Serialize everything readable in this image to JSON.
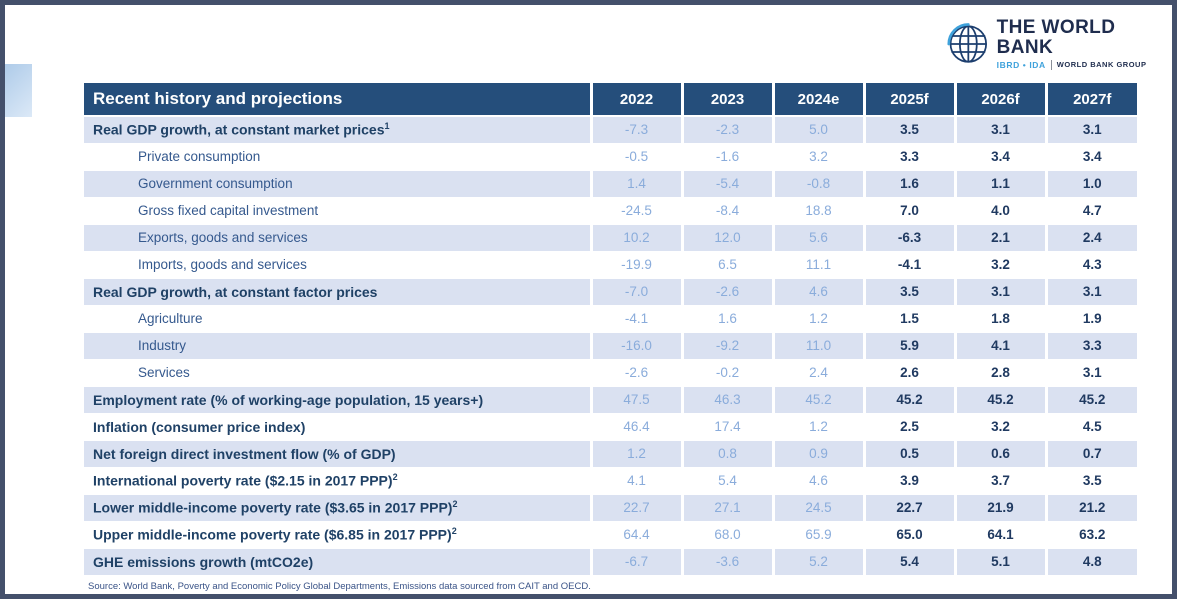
{
  "logo": {
    "title": "THE WORLD BANK",
    "org_left": "IBRD • IDA",
    "org_right": "WORLD BANK GROUP"
  },
  "table": {
    "title": "Recent history and projections",
    "years": [
      "2022",
      "2023",
      "2024e",
      "2025f",
      "2026f",
      "2027f"
    ],
    "rows": [
      {
        "label": "Real GDP growth, at constant market prices",
        "sup": "1",
        "indent": false,
        "shade": "blue",
        "values": [
          "-7.3",
          "-2.3",
          "5.0",
          "3.5",
          "3.1",
          "3.1"
        ]
      },
      {
        "label": "Private consumption",
        "sup": "",
        "indent": true,
        "shade": "white",
        "values": [
          "-0.5",
          "-1.6",
          "3.2",
          "3.3",
          "3.4",
          "3.4"
        ]
      },
      {
        "label": "Government consumption",
        "sup": "",
        "indent": true,
        "shade": "blue",
        "values": [
          "1.4",
          "-5.4",
          "-0.8",
          "1.6",
          "1.1",
          "1.0"
        ]
      },
      {
        "label": "Gross fixed capital investment",
        "sup": "",
        "indent": true,
        "shade": "white",
        "values": [
          "-24.5",
          "-8.4",
          "18.8",
          "7.0",
          "4.0",
          "4.7"
        ]
      },
      {
        "label": "Exports, goods and services",
        "sup": "",
        "indent": true,
        "shade": "blue",
        "values": [
          "10.2",
          "12.0",
          "5.6",
          "-6.3",
          "2.1",
          "2.4"
        ]
      },
      {
        "label": "Imports, goods and services",
        "sup": "",
        "indent": true,
        "shade": "white",
        "values": [
          "-19.9",
          "6.5",
          "11.1",
          "-4.1",
          "3.2",
          "4.3"
        ]
      },
      {
        "label": "Real GDP growth, at constant factor prices",
        "sup": "",
        "indent": false,
        "shade": "blue",
        "values": [
          "-7.0",
          "-2.6",
          "4.6",
          "3.5",
          "3.1",
          "3.1"
        ]
      },
      {
        "label": "Agriculture",
        "sup": "",
        "indent": true,
        "shade": "white",
        "values": [
          "-4.1",
          "1.6",
          "1.2",
          "1.5",
          "1.8",
          "1.9"
        ]
      },
      {
        "label": "Industry",
        "sup": "",
        "indent": true,
        "shade": "blue",
        "values": [
          "-16.0",
          "-9.2",
          "11.0",
          "5.9",
          "4.1",
          "3.3"
        ]
      },
      {
        "label": "Services",
        "sup": "",
        "indent": true,
        "shade": "white",
        "values": [
          "-2.6",
          "-0.2",
          "2.4",
          "2.6",
          "2.8",
          "3.1"
        ]
      },
      {
        "label": "Employment rate (% of working-age population, 15 years+)",
        "sup": "",
        "indent": false,
        "shade": "blue",
        "values": [
          "47.5",
          "46.3",
          "45.2",
          "45.2",
          "45.2",
          "45.2"
        ]
      },
      {
        "label": "Inflation (consumer price index)",
        "sup": "",
        "indent": false,
        "shade": "white",
        "values": [
          "46.4",
          "17.4",
          "1.2",
          "2.5",
          "3.2",
          "4.5"
        ]
      },
      {
        "label": "Net foreign direct investment flow (% of GDP)",
        "sup": "",
        "indent": false,
        "shade": "blue",
        "values": [
          "1.2",
          "0.8",
          "0.9",
          "0.5",
          "0.6",
          "0.7"
        ]
      },
      {
        "label": "International poverty rate ($2.15 in 2017 PPP)",
        "sup": "2",
        "indent": false,
        "shade": "white",
        "values": [
          "4.1",
          "5.4",
          "4.6",
          "3.9",
          "3.7",
          "3.5"
        ]
      },
      {
        "label": "Lower middle-income poverty rate ($3.65 in 2017 PPP)",
        "sup": "2",
        "indent": false,
        "shade": "blue",
        "values": [
          "22.7",
          "27.1",
          "24.5",
          "22.7",
          "21.9",
          "21.2"
        ]
      },
      {
        "label": "Upper middle-income poverty rate ($6.85 in 2017 PPP)",
        "sup": "2",
        "indent": false,
        "shade": "white",
        "values": [
          "64.4",
          "68.0",
          "65.9",
          "65.0",
          "64.1",
          "63.2"
        ]
      },
      {
        "label": "GHE emissions growth (mtCO2e)",
        "sup": "",
        "indent": false,
        "shade": "blue",
        "values": [
          "-6.7",
          "-3.6",
          "5.2",
          "5.4",
          "5.1",
          "4.8"
        ]
      }
    ]
  },
  "footer": {
    "source": "Source: World Bank, Poverty and Economic Policy Global Departments, Emissions data sourced from CAIT and OECD."
  },
  "colors": {
    "frame_border": "#44506B",
    "header_bg": "#254E7B",
    "row_blue_bg": "#DAE1F1",
    "historical_value": "#8AACDB",
    "projection_value": "#203A61",
    "logo_light_blue": "#3FA2DB",
    "logo_dark_navy": "#1F2D4E"
  }
}
